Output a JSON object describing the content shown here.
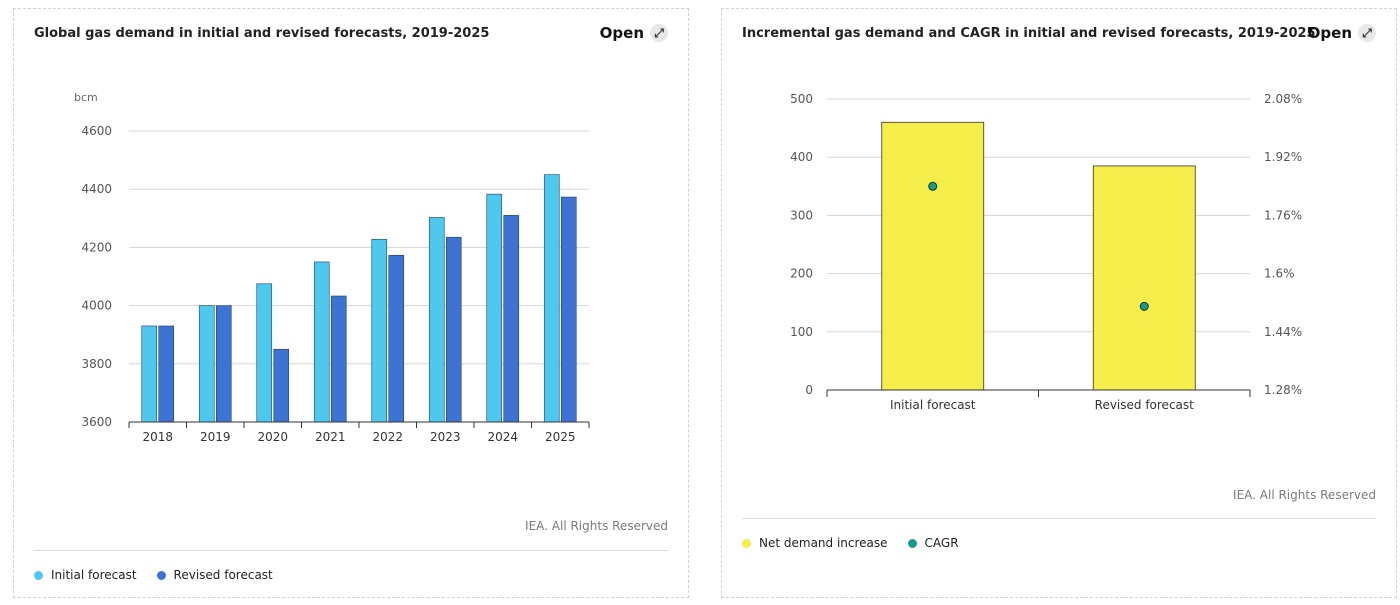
{
  "left": {
    "title": "Global gas demand in initial and revised forecasts, 2019-2025",
    "open_label": "Open",
    "credit": "IEA. All Rights Reserved",
    "legend": [
      {
        "label": "Initial forecast",
        "color": "#4fc8ee"
      },
      {
        "label": "Revised forecast",
        "color": "#3d73d2"
      }
    ]
  },
  "right": {
    "title": "Incremental gas demand and CAGR in initial and revised forecasts, 2019-2025",
    "open_label": "Open",
    "credit": "IEA. All Rights Reserved",
    "legend": [
      {
        "label": "Net demand increase",
        "color": "#f5ee4a"
      },
      {
        "label": "CAGR",
        "color": "#1a9a8a"
      }
    ]
  },
  "chart_data": [
    {
      "type": "bar",
      "title": "Global gas demand in initial and revised forecasts, 2019-2025",
      "ylabel": "bcm",
      "ylim": [
        3600,
        4600
      ],
      "yticks": [
        3600,
        3800,
        4000,
        4200,
        4400,
        4600
      ],
      "categories": [
        "2018",
        "2019",
        "2020",
        "2021",
        "2022",
        "2023",
        "2024",
        "2025"
      ],
      "series": [
        {
          "name": "Initial forecast",
          "color": "#4fc8ee",
          "values": [
            3930,
            4000,
            4075,
            4150,
            4228,
            4303,
            4383,
            4450
          ]
        },
        {
          "name": "Revised forecast",
          "color": "#3d73d2",
          "values": [
            3930,
            4000,
            3850,
            4033,
            4173,
            4235,
            4310,
            4373
          ]
        }
      ],
      "grid": true,
      "legend_position": "bottom-left"
    },
    {
      "type": "bar",
      "title": "Incremental gas demand and CAGR in initial and revised forecasts, 2019-2025",
      "ylim": [
        0,
        500
      ],
      "yticks": [
        0,
        100,
        200,
        300,
        400,
        500
      ],
      "y2lim": [
        1.28,
        2.08
      ],
      "y2ticks": [
        "1.28%",
        "1.44%",
        "1.6%",
        "1.76%",
        "1.92%",
        "2.08%"
      ],
      "categories": [
        "Initial forecast",
        "Revised forecast"
      ],
      "series": [
        {
          "name": "Net demand increase",
          "color": "#f5ee4a",
          "values": [
            460,
            385
          ]
        },
        {
          "name": "CAGR",
          "color": "#1a9a8a",
          "axis": "right",
          "values": [
            1.84,
            1.51
          ]
        }
      ],
      "grid": true,
      "legend_position": "bottom-left"
    }
  ]
}
